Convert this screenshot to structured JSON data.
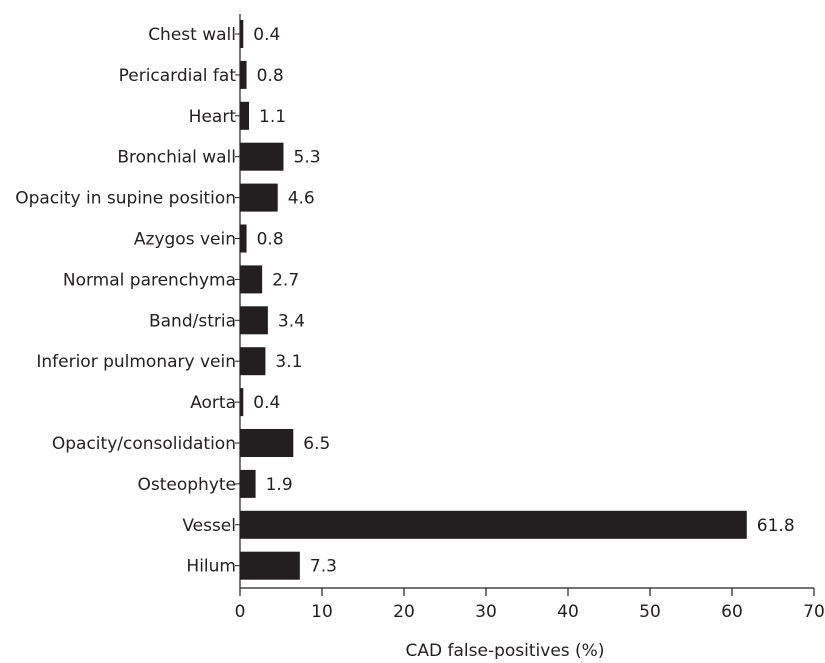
{
  "chart_data": {
    "type": "bar",
    "orientation": "horizontal",
    "categories": [
      "Chest wall",
      "Pericardial fat",
      "Heart",
      "Bronchial wall",
      "Opacity in supine position",
      "Azygos vein",
      "Normal parenchyma",
      "Band/stria",
      "Inferior pulmonary vein",
      "Aorta",
      "Opacity/consolidation",
      "Osteophyte",
      "Vessel",
      "Hilum"
    ],
    "values": [
      0.4,
      0.8,
      1.1,
      5.3,
      4.6,
      0.8,
      2.7,
      3.4,
      3.1,
      0.4,
      6.5,
      1.9,
      61.8,
      7.3
    ],
    "value_labels": [
      "0.4",
      "0.8",
      "1.1",
      "5.3",
      "4.6",
      "0.8",
      "2.7",
      "3.4",
      "3.1",
      "0.4",
      "6.5",
      "1.9",
      "61.8",
      "7.3"
    ],
    "xlabel": "CAD false-positives (%)",
    "ylabel": "",
    "xlim": [
      0,
      70
    ],
    "xticks": [
      0,
      10,
      20,
      30,
      40,
      50,
      60,
      70
    ],
    "grid": false,
    "legend": "none",
    "colors": {
      "bar": "#231f20",
      "axis": "#231f20",
      "text": "#231f20"
    }
  }
}
